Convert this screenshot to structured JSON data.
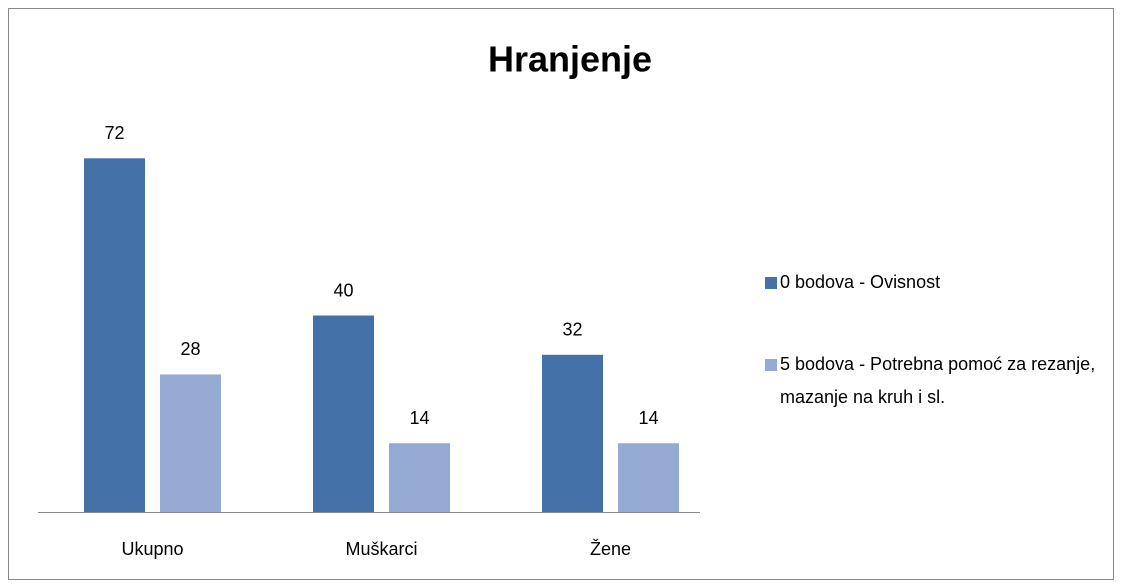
{
  "chart_data": {
    "type": "bar",
    "title": "Hranjenje",
    "categories": [
      "Ukupno",
      "Muškarci",
      "Žene"
    ],
    "series": [
      {
        "name": "0 bodova - Ovisnost",
        "color": "#4472a8",
        "values": [
          72,
          40,
          32
        ]
      },
      {
        "name": "5 bodova - Potrebna pomoć za rezanje, mazanje na kruh i sl.",
        "color": "#95aad3",
        "values": [
          28,
          14,
          14
        ]
      }
    ],
    "ylim": [
      0,
      80
    ],
    "legend": "right"
  }
}
